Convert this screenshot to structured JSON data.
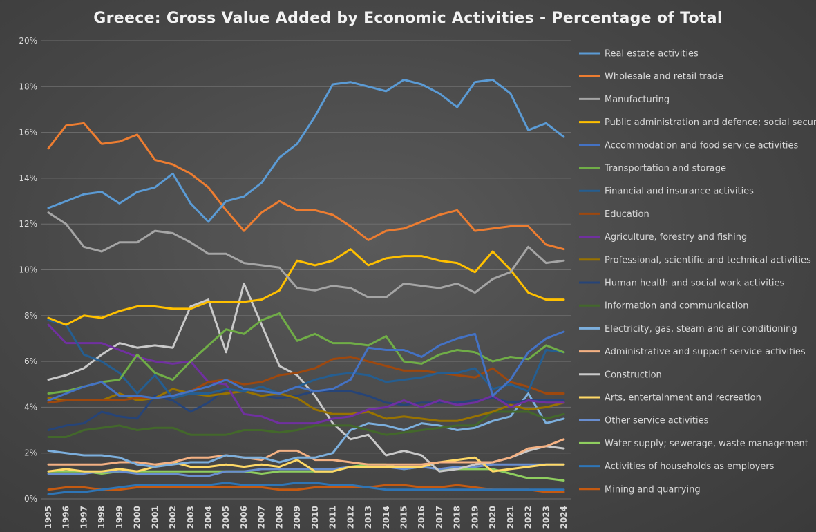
{
  "chart_data": {
    "type": "line",
    "title": "Greece: Gross Value Added by Economic Activities - Percentage of Total",
    "xlabel": "",
    "ylabel": "",
    "ylim": [
      0,
      20
    ],
    "yticks": [
      "0%",
      "2%",
      "4%",
      "6%",
      "8%",
      "10%",
      "12%",
      "14%",
      "16%",
      "18%",
      "20%"
    ],
    "grid": true,
    "legend_position": "right",
    "x": [
      "1995",
      "1996",
      "1997",
      "1998",
      "1999",
      "2000",
      "2001",
      "2002",
      "2003",
      "2004",
      "2005",
      "2006",
      "2007",
      "2008",
      "2009",
      "2010",
      "2011",
      "2012",
      "2013",
      "2014",
      "2015",
      "2016",
      "2017",
      "2018",
      "2019",
      "2020",
      "2021",
      "2022",
      "2023",
      "2024"
    ],
    "series": [
      {
        "name": "Real estate activities",
        "color": "#5b9bd5",
        "values": [
          12.7,
          13.0,
          13.3,
          13.4,
          12.9,
          13.4,
          13.6,
          14.2,
          12.9,
          12.1,
          13.0,
          13.2,
          13.8,
          14.9,
          15.5,
          16.7,
          18.1,
          18.2,
          18.0,
          17.8,
          18.3,
          18.1,
          17.7,
          17.1,
          18.2,
          18.3,
          17.7,
          16.1,
          16.4,
          15.8
        ]
      },
      {
        "name": "Wholesale and retail trade",
        "color": "#ed7d31",
        "values": [
          15.3,
          16.3,
          16.4,
          15.5,
          15.6,
          15.9,
          14.8,
          14.6,
          14.2,
          13.6,
          12.6,
          11.7,
          12.5,
          13.0,
          12.6,
          12.6,
          12.4,
          11.9,
          11.3,
          11.7,
          11.8,
          12.1,
          12.4,
          12.6,
          11.7,
          11.8,
          11.9,
          11.9,
          11.1,
          10.9
        ]
      },
      {
        "name": "Manufacturing",
        "color": "#a5a5a5",
        "values": [
          12.5,
          12.0,
          11.0,
          10.8,
          11.2,
          11.2,
          11.7,
          11.6,
          11.2,
          10.7,
          10.7,
          10.3,
          10.2,
          10.1,
          9.2,
          9.1,
          9.3,
          9.2,
          8.8,
          8.8,
          9.4,
          9.3,
          9.2,
          9.4,
          9.0,
          9.6,
          9.9,
          11.0,
          10.3,
          10.4
        ]
      },
      {
        "name": "Public administration and defence; social security",
        "color": "#ffc000",
        "values": [
          7.9,
          7.6,
          8.0,
          7.9,
          8.2,
          8.4,
          8.4,
          8.3,
          8.3,
          8.6,
          8.6,
          8.6,
          8.7,
          9.1,
          10.4,
          10.2,
          10.4,
          10.9,
          10.2,
          10.5,
          10.6,
          10.6,
          10.4,
          10.3,
          9.9,
          10.8,
          10.0,
          9.0,
          8.7,
          8.7
        ]
      },
      {
        "name": "Accommodation and food service activities",
        "color": "#4472c4",
        "values": [
          4.3,
          4.6,
          4.9,
          5.1,
          4.5,
          4.5,
          4.4,
          4.5,
          4.7,
          4.9,
          5.2,
          4.8,
          4.7,
          4.6,
          4.9,
          4.7,
          4.8,
          5.2,
          6.6,
          6.5,
          6.5,
          6.2,
          6.7,
          7.0,
          7.2,
          4.5,
          5.2,
          6.4,
          7.0,
          7.3
        ]
      },
      {
        "name": "Transportation and storage",
        "color": "#70ad47",
        "values": [
          4.6,
          4.7,
          4.9,
          5.1,
          5.2,
          6.3,
          5.5,
          5.2,
          6.0,
          6.7,
          7.4,
          7.2,
          7.8,
          8.1,
          6.9,
          7.2,
          6.8,
          6.8,
          6.7,
          7.1,
          6.0,
          5.9,
          6.3,
          6.5,
          6.4,
          6.0,
          6.2,
          6.1,
          6.7,
          6.4
        ]
      },
      {
        "name": "Financial and insurance activities",
        "color": "#255e91",
        "values": [
          7.8,
          7.6,
          6.3,
          6.0,
          5.5,
          4.6,
          5.4,
          4.4,
          4.6,
          4.6,
          4.8,
          4.7,
          4.9,
          4.6,
          4.9,
          5.2,
          5.4,
          5.5,
          5.4,
          5.1,
          5.2,
          5.3,
          5.5,
          5.5,
          5.7,
          4.8,
          5.0,
          4.7,
          6.5,
          6.4
        ]
      },
      {
        "name": "Education",
        "color": "#9e480e",
        "values": [
          4.2,
          4.3,
          4.3,
          4.3,
          4.3,
          4.4,
          4.4,
          4.5,
          4.7,
          5.1,
          5.2,
          5.0,
          5.1,
          5.4,
          5.5,
          5.7,
          6.1,
          6.2,
          6.0,
          5.8,
          5.6,
          5.6,
          5.5,
          5.4,
          5.3,
          5.7,
          5.1,
          4.9,
          4.6,
          4.6
        ]
      },
      {
        "name": "Agriculture, forestry and fishing",
        "color": "#7030a0",
        "values": [
          7.6,
          6.8,
          6.8,
          6.8,
          6.5,
          6.2,
          6.0,
          5.9,
          6.0,
          5.1,
          5.0,
          3.7,
          3.6,
          3.3,
          3.3,
          3.3,
          3.5,
          3.6,
          3.9,
          4.0,
          4.3,
          4.0,
          4.3,
          4.1,
          4.2,
          4.5,
          4.0,
          4.3,
          4.2,
          4.2
        ]
      },
      {
        "name": "Professional, scientific and technical activities",
        "color": "#997300",
        "values": [
          4.4,
          4.3,
          4.3,
          4.3,
          4.6,
          4.3,
          4.4,
          4.8,
          4.6,
          4.5,
          4.6,
          4.7,
          4.5,
          4.6,
          4.4,
          3.9,
          3.7,
          3.7,
          3.8,
          3.5,
          3.6,
          3.5,
          3.4,
          3.4,
          3.6,
          3.8,
          4.1,
          3.9,
          4.0,
          4.2
        ]
      },
      {
        "name": "Human health and social work activities",
        "color": "#264478",
        "values": [
          3.0,
          3.2,
          3.3,
          3.8,
          3.6,
          3.5,
          4.5,
          4.3,
          3.8,
          4.2,
          4.8,
          4.7,
          4.5,
          4.4,
          4.5,
          4.7,
          4.7,
          4.7,
          4.5,
          4.2,
          4.1,
          4.2,
          4.2,
          4.2,
          4.3,
          4.4,
          4.2,
          4.3,
          4.3,
          4.3
        ]
      },
      {
        "name": "Information and communication",
        "color": "#43682b",
        "values": [
          2.7,
          2.7,
          3.0,
          3.1,
          3.2,
          3.0,
          3.1,
          3.1,
          2.8,
          2.8,
          2.8,
          3.0,
          3.0,
          2.9,
          3.0,
          3.2,
          3.2,
          3.2,
          3.0,
          2.8,
          2.9,
          3.0,
          3.1,
          3.2,
          3.2,
          3.8,
          3.8,
          3.8,
          3.5,
          3.7
        ]
      },
      {
        "name": "Electricity, gas, steam and air conditioning",
        "color": "#7cafdd",
        "values": [
          2.1,
          2.0,
          1.9,
          1.9,
          1.8,
          1.5,
          1.4,
          1.5,
          1.6,
          1.6,
          1.9,
          1.8,
          1.8,
          1.6,
          1.8,
          1.8,
          2.0,
          3.0,
          3.3,
          3.2,
          3.0,
          3.3,
          3.2,
          3.0,
          3.1,
          3.4,
          3.6,
          4.6,
          3.3,
          3.5
        ]
      },
      {
        "name": "Administrative and support service activities",
        "color": "#f4b183",
        "values": [
          1.5,
          1.5,
          1.5,
          1.5,
          1.6,
          1.6,
          1.5,
          1.6,
          1.8,
          1.8,
          1.9,
          1.8,
          1.7,
          2.1,
          2.1,
          1.7,
          1.7,
          1.6,
          1.5,
          1.5,
          1.5,
          1.5,
          1.6,
          1.6,
          1.6,
          1.6,
          1.8,
          2.2,
          2.3,
          2.6
        ]
      },
      {
        "name": "Construction",
        "color": "#c9c9c9",
        "values": [
          5.2,
          5.4,
          5.7,
          6.3,
          6.8,
          6.6,
          6.7,
          6.6,
          8.4,
          8.7,
          6.4,
          9.4,
          7.6,
          5.8,
          5.4,
          4.5,
          3.3,
          2.6,
          2.8,
          1.9,
          2.1,
          1.9,
          1.2,
          1.3,
          1.5,
          1.6,
          1.8,
          2.1,
          2.3,
          2.2
        ]
      },
      {
        "name": "Arts, entertainment and recreation",
        "color": "#ffd966",
        "values": [
          1.2,
          1.3,
          1.2,
          1.2,
          1.3,
          1.2,
          1.4,
          1.6,
          1.4,
          1.4,
          1.5,
          1.4,
          1.5,
          1.4,
          1.7,
          1.2,
          1.2,
          1.4,
          1.4,
          1.4,
          1.4,
          1.4,
          1.6,
          1.7,
          1.8,
          1.2,
          1.3,
          1.4,
          1.5,
          1.5
        ]
      },
      {
        "name": "Other service activities",
        "color": "#698ed0",
        "values": [
          1.1,
          1.1,
          1.1,
          1.2,
          1.2,
          1.1,
          1.1,
          1.1,
          1.0,
          1.0,
          1.2,
          1.2,
          1.3,
          1.3,
          1.3,
          1.3,
          1.3,
          1.4,
          1.4,
          1.4,
          1.3,
          1.4,
          1.3,
          1.4,
          1.4,
          1.5,
          1.5,
          1.5,
          1.5,
          1.5
        ]
      },
      {
        "name": "Water supply; sewerage, waste management",
        "color": "#8fce5f",
        "values": [
          1.2,
          1.2,
          1.2,
          1.1,
          1.2,
          1.2,
          1.2,
          1.2,
          1.2,
          1.2,
          1.2,
          1.2,
          1.1,
          1.2,
          1.2,
          1.2,
          1.2,
          1.4,
          1.5,
          1.5,
          1.3,
          1.4,
          1.3,
          1.3,
          1.3,
          1.3,
          1.1,
          0.9,
          0.9,
          0.8
        ]
      },
      {
        "name": "Activities of households as employers",
        "color": "#2e75b6",
        "values": [
          0.2,
          0.3,
          0.3,
          0.4,
          0.5,
          0.6,
          0.6,
          0.6,
          0.6,
          0.6,
          0.7,
          0.6,
          0.6,
          0.6,
          0.7,
          0.7,
          0.6,
          0.6,
          0.5,
          0.4,
          0.4,
          0.4,
          0.4,
          0.4,
          0.4,
          0.4,
          0.4,
          0.4,
          0.4,
          0.4
        ]
      },
      {
        "name": "Mining and quarrying",
        "color": "#c55a11",
        "values": [
          0.4,
          0.5,
          0.5,
          0.4,
          0.4,
          0.5,
          0.5,
          0.5,
          0.5,
          0.5,
          0.5,
          0.5,
          0.5,
          0.4,
          0.4,
          0.5,
          0.5,
          0.5,
          0.5,
          0.6,
          0.6,
          0.5,
          0.5,
          0.6,
          0.5,
          0.4,
          0.4,
          0.4,
          0.3,
          0.3
        ]
      }
    ]
  }
}
